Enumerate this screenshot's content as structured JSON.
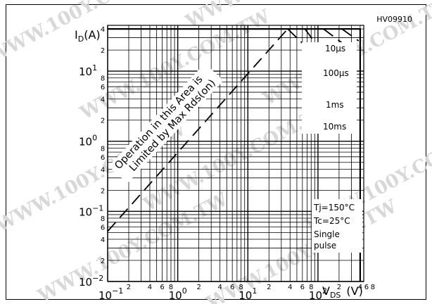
{
  "chart_data": {
    "type": "line",
    "title": "",
    "part_number": "HV09910",
    "xlabel": "V",
    "xlabel_subscript": "DS",
    "xlabel_unit": "(V)",
    "ylabel": "I",
    "ylabel_subscript": "D",
    "ylabel_unit": "(A)",
    "x_scale": "log",
    "y_scale": "log",
    "xlim": [
      0.1,
      450
    ],
    "ylim": [
      0.01,
      45
    ],
    "grid": true,
    "x_major_ticks": [
      {
        "value": 0.1,
        "base": "10",
        "exp": "−1"
      },
      {
        "value": 1,
        "base": "10",
        "exp": "0"
      },
      {
        "value": 10,
        "base": "10",
        "exp": "1"
      },
      {
        "value": 100,
        "base": "10",
        "exp": "2"
      }
    ],
    "x_minor_ticks": [
      {
        "value": 0.2,
        "label": "2"
      },
      {
        "value": 0.4,
        "label": "4"
      },
      {
        "value": 0.6,
        "label": "6"
      },
      {
        "value": 0.8,
        "label": "8"
      },
      {
        "value": 2,
        "label": "2"
      },
      {
        "value": 4,
        "label": "4"
      },
      {
        "value": 6,
        "label": "6"
      },
      {
        "value": 8,
        "label": "8"
      },
      {
        "value": 20,
        "label": "2"
      },
      {
        "value": 40,
        "label": "4"
      },
      {
        "value": 60,
        "label": "6"
      },
      {
        "value": 80,
        "label": "8"
      },
      {
        "value": 200,
        "label": "2"
      },
      {
        "value": 400,
        "label": "4"
      }
    ],
    "x_extra_labels": [
      {
        "value": 600,
        "label": "6"
      },
      {
        "value": 800,
        "label": "8"
      }
    ],
    "y_major_ticks": [
      {
        "value": 0.01,
        "base": "10",
        "exp": "−2"
      },
      {
        "value": 0.1,
        "base": "10",
        "exp": "−1"
      },
      {
        "value": 1,
        "base": "10",
        "exp": "0"
      },
      {
        "value": 10,
        "base": "10",
        "exp": "1"
      }
    ],
    "y_minor_ticks": [
      {
        "value": 0.02,
        "label": "2"
      },
      {
        "value": 0.04,
        "label": "4"
      },
      {
        "value": 0.06,
        "label": "6"
      },
      {
        "value": 0.08,
        "label": "8"
      },
      {
        "value": 0.2,
        "label": "2"
      },
      {
        "value": 0.4,
        "label": "4"
      },
      {
        "value": 0.6,
        "label": "6"
      },
      {
        "value": 0.8,
        "label": "8"
      },
      {
        "value": 2,
        "label": "2"
      },
      {
        "value": 4,
        "label": "4"
      },
      {
        "value": 6,
        "label": "6"
      },
      {
        "value": 8,
        "label": "8"
      },
      {
        "value": 20,
        "label": "2"
      },
      {
        "value": 40,
        "label": "4"
      }
    ],
    "series": [
      {
        "name": "",
        "style": "solid",
        "points": [
          [
            0.1,
            40
          ],
          [
            400,
            40
          ],
          [
            400,
            0.01
          ]
        ]
      },
      {
        "name": "",
        "style": "dashed",
        "points": [
          [
            0.1,
            0.052
          ],
          [
            37,
            40
          ]
        ]
      },
      {
        "name": "",
        "style": "dashed",
        "points": [
          [
            37,
            40
          ],
          [
            140,
            11
          ]
        ]
      },
      {
        "name": "",
        "style": "dashed",
        "points": [
          [
            65,
            40
          ],
          [
            290,
            5.5
          ]
        ]
      },
      {
        "name": "",
        "style": "dashed",
        "points": [
          [
            120,
            40
          ],
          [
            300,
            20
          ]
        ]
      },
      {
        "name": "",
        "style": "dashed",
        "points": [
          [
            220,
            40
          ],
          [
            380,
            27
          ]
        ]
      }
    ],
    "annotations": {
      "pulse_widths": [
        {
          "label": "10μs",
          "y": 36
        },
        {
          "label": "100μs",
          "y": 17
        },
        {
          "label": "1ms",
          "y": 5.2
        },
        {
          "label": "10ms",
          "y": 2.6
        }
      ],
      "conditions": [
        "Tj=150°C",
        "Tc=25°C",
        "Single",
        "pulse"
      ],
      "region_text": [
        "Operation in this Area is",
        "Limited by Max Rds(on)"
      ]
    },
    "watermark": "WWW.100Y.COM.TW"
  }
}
